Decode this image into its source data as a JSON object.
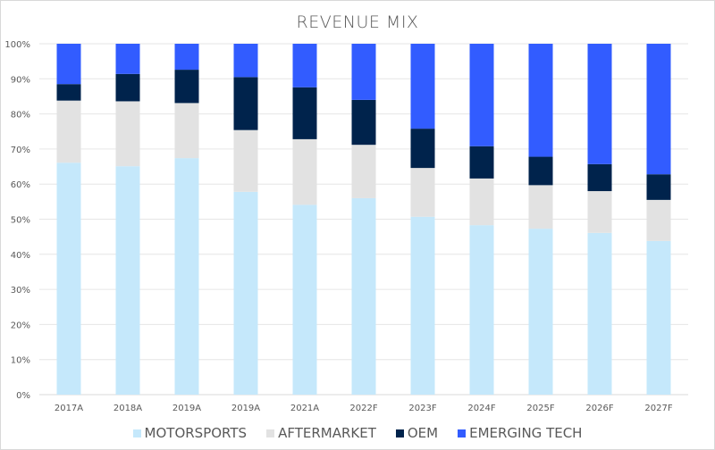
{
  "chart_data": {
    "type": "bar",
    "stacked": true,
    "normalized": true,
    "title": "REVENUE MIX",
    "xlabel": "",
    "ylabel": "",
    "ylim": [
      0,
      100
    ],
    "yticks": [
      "0%",
      "10%",
      "20%",
      "30%",
      "40%",
      "50%",
      "60%",
      "70%",
      "80%",
      "90%",
      "100%"
    ],
    "grid": true,
    "legend_position": "bottom",
    "categories": [
      "2017A",
      "2018A",
      "2019A",
      "2019A",
      "2021A",
      "2022F",
      "2023F",
      "2024F",
      "2025F",
      "2026F",
      "2027F"
    ],
    "series": [
      {
        "name": "MOTORSPORTS",
        "color": "#C5E8FB",
        "values": [
          66.1,
          65.1,
          67.4,
          57.8,
          54.1,
          56.0,
          50.7,
          48.3,
          47.3,
          46.1,
          43.8
        ]
      },
      {
        "name": "AFTERMARKET",
        "color": "#E2E2E2",
        "values": [
          17.7,
          18.5,
          15.7,
          17.6,
          18.7,
          15.2,
          13.9,
          13.3,
          12.4,
          11.9,
          11.7
        ]
      },
      {
        "name": "OEM",
        "color": "#00234C",
        "values": [
          4.7,
          7.8,
          9.5,
          15.1,
          14.8,
          12.8,
          11.2,
          9.2,
          8.1,
          7.7,
          7.3
        ]
      },
      {
        "name": "EMERGING TECH",
        "color": "#325CFF",
        "values": [
          11.5,
          8.6,
          7.4,
          9.5,
          12.4,
          16.0,
          24.2,
          29.2,
          32.2,
          34.3,
          37.2
        ]
      }
    ]
  }
}
